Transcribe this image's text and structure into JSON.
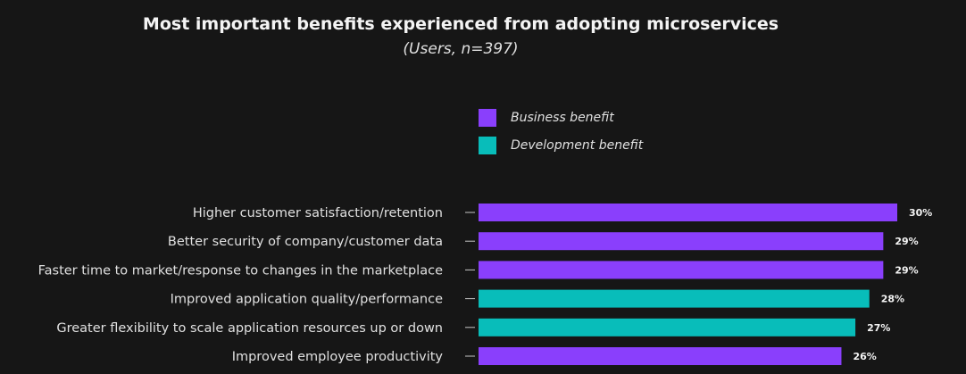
{
  "chart_data": {
    "type": "bar",
    "orientation": "horizontal",
    "title": "Most important benefits experienced from adopting microservices",
    "subtitle": "(Users, n=397)",
    "categories": [
      "Higher customer satisfaction/retention",
      "Better security of company/customer data",
      "Faster time to market/response to changes in the marketplace",
      "Improved application quality/performance",
      "Greater flexibility to scale application resources up or down",
      "Improved employee productivity"
    ],
    "values": [
      30,
      29,
      29,
      28,
      27,
      26
    ],
    "value_labels": [
      "30%",
      "29%",
      "29%",
      "28%",
      "27%",
      "26%"
    ],
    "groups": [
      "Business benefit",
      "Business benefit",
      "Business benefit",
      "Development benefit",
      "Development benefit",
      "Business benefit"
    ],
    "legend": [
      {
        "label": "Business benefit",
        "color": "#8a3ffc"
      },
      {
        "label": "Development benefit",
        "color": "#08bdba"
      }
    ],
    "legend_placement": "top-center",
    "grid": false,
    "xlim": [
      0,
      30
    ],
    "background": "#161616"
  }
}
